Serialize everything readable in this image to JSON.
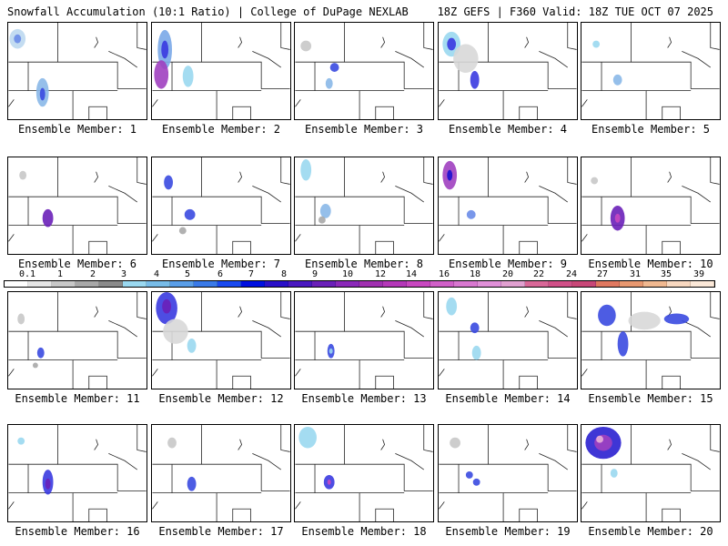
{
  "header": {
    "title_left": "Snowfall Accumulation (10:1 Ratio) | College of DuPage NEXLAB",
    "title_right": "18Z GEFS | F360 Valid: 18Z TUE OCT 07 2025"
  },
  "colorbar": {
    "labels": [
      "0.1",
      "1",
      "2",
      "3",
      "4",
      "5",
      "6",
      "7",
      "8",
      "9",
      "10",
      "12",
      "14",
      "16",
      "18",
      "20",
      "22",
      "24",
      "27",
      "31",
      "35",
      "39"
    ],
    "colors": [
      "#ffffff",
      "#e6e6e6",
      "#c8c8c8",
      "#a8a8a8",
      "#8a8a8a",
      "#9ad8f0",
      "#78bce8",
      "#5a9ee8",
      "#3a7ae8",
      "#1a4af0",
      "#0010e0",
      "#2a10c8",
      "#4a18c0",
      "#6a20b8",
      "#8a28b8",
      "#a030b0",
      "#b438b8",
      "#c848c0",
      "#d060c8",
      "#d878d0",
      "#e090d8",
      "#e0a0d0",
      "#d86898",
      "#d05088",
      "#c84878",
      "#e07860",
      "#e89870",
      "#f0b890",
      "#f8d8c0",
      "#fbe8d8"
    ]
  },
  "panels": [
    {
      "label": "Ensemble Member: 1"
    },
    {
      "label": "Ensemble Member: 2"
    },
    {
      "label": "Ensemble Member: 3"
    },
    {
      "label": "Ensemble Member: 4"
    },
    {
      "label": "Ensemble Member: 5"
    },
    {
      "label": "Ensemble Member: 6"
    },
    {
      "label": "Ensemble Member: 7"
    },
    {
      "label": "Ensemble Member: 8"
    },
    {
      "label": "Ensemble Member: 9"
    },
    {
      "label": "Ensemble Member: 10"
    },
    {
      "label": "Ensemble Member: 11"
    },
    {
      "label": "Ensemble Member: 12"
    },
    {
      "label": "Ensemble Member: 13"
    },
    {
      "label": "Ensemble Member: 14"
    },
    {
      "label": "Ensemble Member: 15"
    },
    {
      "label": "Ensemble Member: 16"
    },
    {
      "label": "Ensemble Member: 17"
    },
    {
      "label": "Ensemble Member: 18"
    },
    {
      "label": "Ensemble Member: 19"
    },
    {
      "label": "Ensemble Member: 20"
    }
  ]
}
